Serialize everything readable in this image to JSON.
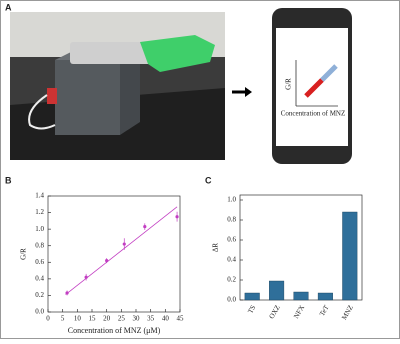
{
  "panels": [
    "A",
    "B",
    "C"
  ],
  "phone_screen": {
    "y_label": "G/R",
    "x_label": "Concentration of MNZ"
  },
  "chart_data": [
    {
      "type": "scatter",
      "x_label": "Concentration of MNZ (μM)",
      "y_label": "G/R",
      "xlim": [
        0,
        45
      ],
      "xticks": [
        0,
        5,
        10,
        15,
        20,
        25,
        30,
        35,
        40,
        45
      ],
      "ylim": [
        0,
        1.4
      ],
      "yticks": [
        {
          "value": 0,
          "label": "0.0"
        },
        0.2,
        0.4,
        0.6,
        0.8,
        {
          "value": 1,
          "label": "1.0"
        },
        1.2,
        1.4
      ],
      "series": [
        {
          "color": "#c23ec2",
          "x": [
            6.5,
            13,
            20,
            26,
            33,
            44
          ],
          "values": [
            0.23,
            0.42,
            0.62,
            0.82,
            1.03,
            1.15
          ],
          "errors": [
            0.03,
            0.04,
            0.03,
            0.07,
            0.04,
            0.06
          ]
        }
      ],
      "fit": {
        "color": "#c23ec2",
        "x": [
          6,
          44
        ],
        "values": [
          0.21,
          1.27
        ]
      }
    },
    {
      "type": "bar",
      "y_label": "ΔR",
      "categories": [
        "TS",
        "OXZ",
        "NFX",
        "TeT",
        "MNZ"
      ],
      "values": [
        0.07,
        0.19,
        0.08,
        0.07,
        0.88
      ],
      "color": "#2f6f9a",
      "ylim": [
        0,
        1.05
      ],
      "yticks": [
        {
          "value": 0,
          "label": "0.0"
        },
        0.2,
        0.4,
        0.6,
        0.8,
        {
          "value": 1,
          "label": "1.0"
        }
      ]
    }
  ]
}
